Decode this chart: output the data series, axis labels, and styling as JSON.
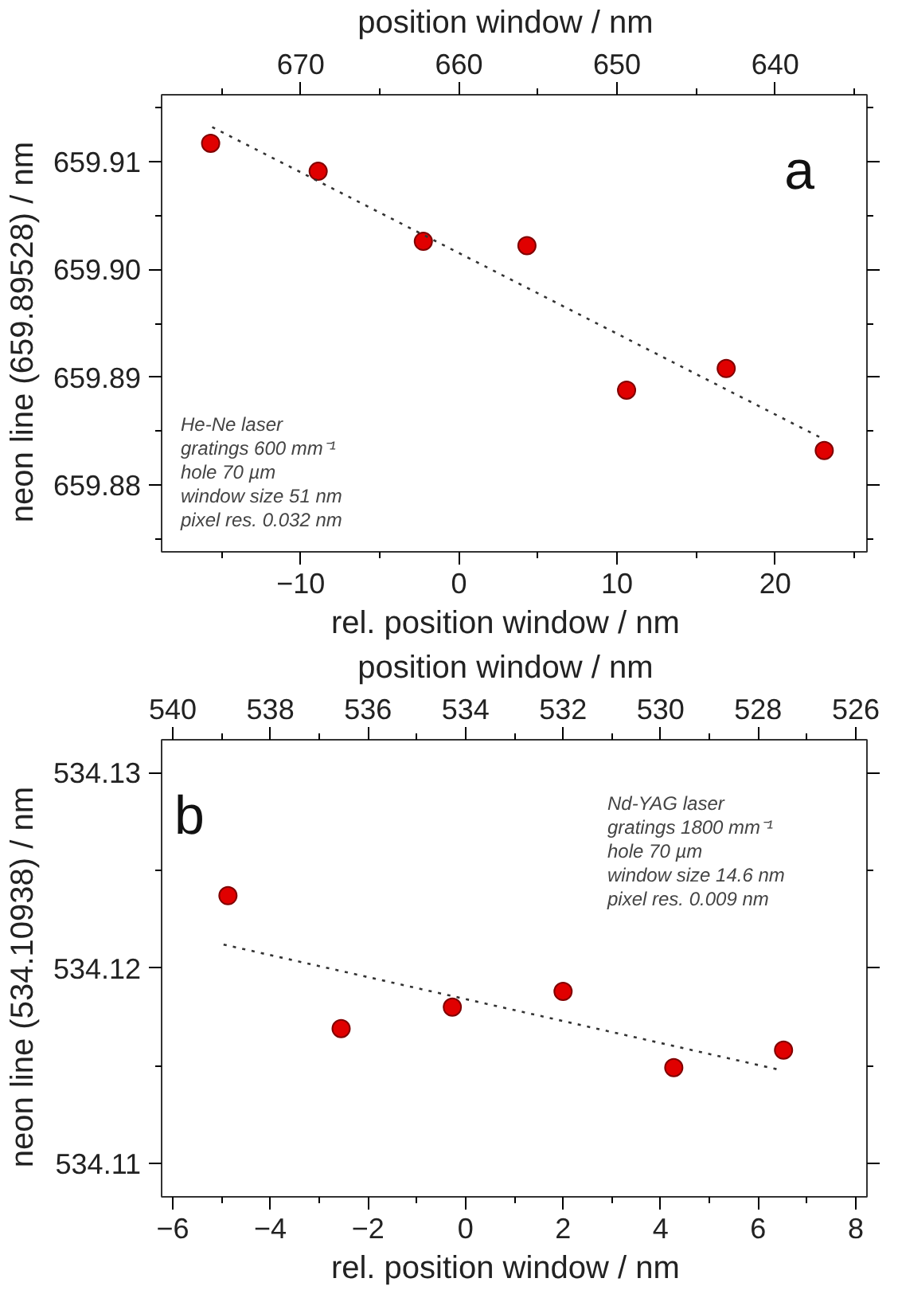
{
  "chart_data": [
    {
      "type": "scatter",
      "xlabel": "rel. position window  /  nm",
      "ylabel": "neon line (659.89528)  /  nm",
      "x2label": "position window  /  nm",
      "xlim": [
        -18.8,
        25.8
      ],
      "ylim": [
        659.8738,
        659.9162
      ],
      "xticks": [
        -10,
        0,
        10,
        20,
        {
          "value": -15,
          "label": null
        },
        {
          "value": -5,
          "label": null
        },
        {
          "value": 5,
          "label": null
        },
        {
          "value": 15,
          "label": null
        },
        {
          "value": 25,
          "label": null
        }
      ],
      "x2lim": [
        678.8,
        634.2
      ],
      "x2ticks": [
        670,
        660,
        650,
        640,
        {
          "value": 675,
          "label": null
        },
        {
          "value": 665,
          "label": null
        },
        {
          "value": 655,
          "label": null
        },
        {
          "value": 645,
          "label": null
        },
        {
          "value": 635,
          "label": null
        }
      ],
      "yticks": [
        659.91,
        {
          "value": 659.9,
          "label": "659.90"
        },
        659.89,
        659.88,
        {
          "value": 659.915,
          "label": null
        },
        {
          "value": 659.905,
          "label": null
        },
        {
          "value": 659.895,
          "label": null
        },
        {
          "value": 659.885,
          "label": null
        },
        {
          "value": 659.875,
          "label": null
        }
      ],
      "grid": false,
      "series": [
        {
          "marker": "circle",
          "color": "#e00000",
          "x": [
            -15.7,
            -8.9,
            -2.25,
            4.3,
            10.6,
            16.9,
            23.1
          ],
          "values": [
            659.9117,
            659.9091,
            659.9026,
            659.9022,
            659.8888,
            659.8908,
            659.8832
          ]
        },
        {
          "type": "line",
          "line_style": "dotted",
          "color": "#333333",
          "x": [
            -15.6,
            23.0
          ],
          "values": [
            659.9132,
            659.8843
          ]
        }
      ],
      "annotations": [
        "a",
        "He-Ne laser",
        "gratings 600 mm⁻¹",
        "hole 70 µm",
        "window size 51 nm",
        "pixel res. 0.032 nm"
      ]
    },
    {
      "type": "scatter",
      "xlabel": "rel. position window  /  nm",
      "ylabel": "neon line (534.10938)  /  nm",
      "x2label": "position window  /  nm",
      "xlim": [
        -6.23,
        8.23
      ],
      "ylim": [
        534.10829,
        534.13168
      ],
      "xticks": [
        -6,
        -4,
        -2,
        0,
        2,
        4,
        6,
        8,
        {
          "value": -5,
          "label": null
        },
        {
          "value": -3,
          "label": null
        },
        {
          "value": -1,
          "label": null
        },
        {
          "value": 1,
          "label": null
        },
        {
          "value": 3,
          "label": null
        },
        {
          "value": 5,
          "label": null
        },
        {
          "value": 7,
          "label": null
        }
      ],
      "x2lim": [
        540.23,
        525.77
      ],
      "x2ticks": [
        540,
        538,
        536,
        534,
        532,
        530,
        528,
        526,
        {
          "value": 539,
          "label": null
        },
        {
          "value": 537,
          "label": null
        },
        {
          "value": 535,
          "label": null
        },
        {
          "value": 533,
          "label": null
        },
        {
          "value": 531,
          "label": null
        },
        {
          "value": 529,
          "label": null
        },
        {
          "value": 527,
          "label": null
        }
      ],
      "yticks": [
        534.13,
        534.12,
        534.11,
        {
          "value": 534.125,
          "label": null
        },
        {
          "value": 534.115,
          "label": null
        }
      ],
      "grid": false,
      "series": [
        {
          "marker": "circle",
          "color": "#e00000",
          "x": [
            -4.87,
            -2.55,
            -0.27,
            2.0,
            4.27,
            6.52
          ],
          "values": [
            534.1237,
            534.1169,
            534.118,
            534.1188,
            534.1149,
            534.1158
          ]
        },
        {
          "type": "line",
          "line_style": "dotted",
          "color": "#333333",
          "x": [
            -4.96,
            6.42
          ],
          "values": [
            534.1212,
            534.1148
          ]
        }
      ],
      "annotations": [
        "b",
        "Nd-YAG laser",
        "gratings 1800 mm⁻¹",
        "hole 70 µm",
        "window size 14.6 nm",
        "pixel res. 0.009 nm"
      ]
    }
  ]
}
